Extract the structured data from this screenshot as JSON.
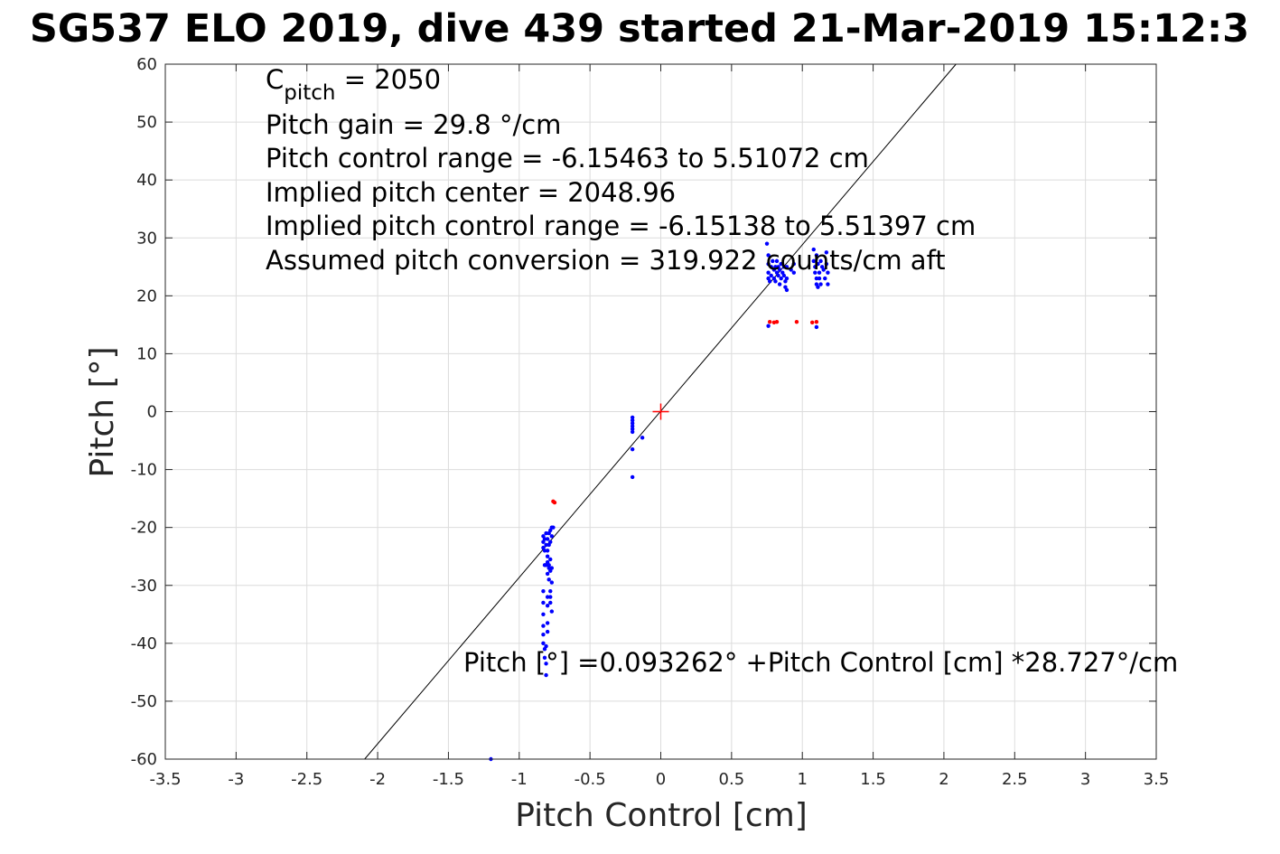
{
  "chart_data": {
    "type": "scatter",
    "title": "SG537 ELO 2019, dive 439 started 21-Mar-2019 15:12:3",
    "xlabel": "Pitch Control [cm]",
    "ylabel": "Pitch [°]",
    "xlim": [
      -3.5,
      3.5
    ],
    "ylim": [
      -60,
      60
    ],
    "xticks": [
      -3.5,
      -3,
      -2.5,
      -2,
      -1.5,
      -1,
      -0.5,
      0,
      0.5,
      1,
      1.5,
      2,
      2.5,
      3,
      3.5
    ],
    "xtick_labels": [
      "-3.5",
      "-3",
      "-2.5",
      "-2",
      "-1.5",
      "-1",
      "-0.5",
      "0",
      "0.5",
      "1",
      "1.5",
      "2",
      "2.5",
      "3",
      "3.5"
    ],
    "yticks": [
      60,
      50,
      40,
      30,
      20,
      10,
      0,
      -10,
      -20,
      -30,
      -40,
      -50,
      -60
    ],
    "ytick_labels": [
      "60",
      "50",
      "40",
      "30",
      "20",
      "10",
      "0",
      "-10",
      "-20",
      "-30",
      "-40",
      "-50",
      "-60"
    ],
    "grid": true,
    "colors": {
      "good_points": "#0000ff",
      "bad_points": "#ff0000",
      "fit_line": "#000000",
      "center_marker": "#ff0000",
      "grid": "#dcdcdc"
    },
    "fit": {
      "intercept": 0.093262,
      "slope": 28.727
    },
    "center_marker": {
      "x": 0,
      "y": 0
    },
    "annotations": {
      "c_pitch_main": "C",
      "c_pitch_sub": "pitch",
      "c_pitch_value": " = 2050",
      "lines": [
        "Pitch gain = 29.8 °/cm",
        "Pitch control range = -6.15463 to 5.51072 cm",
        "Implied pitch center = 2048.96",
        "Implied pitch control range = -6.15138 to 5.51397 cm",
        "Assumed pitch conversion = 319.922 counts/cm aft"
      ],
      "fit_equation": "Pitch [°] =0.093262° +Pitch Control [cm] *28.727°/cm"
    },
    "series": [
      {
        "color": "#0000ff",
        "points": [
          [
            -1.2,
            -60
          ],
          [
            -0.83,
            -21.5
          ],
          [
            -0.83,
            -22.5
          ],
          [
            -0.83,
            -23.5
          ],
          [
            -0.82,
            -22
          ],
          [
            -0.82,
            -24
          ],
          [
            -0.81,
            -21
          ],
          [
            -0.81,
            -23
          ],
          [
            -0.8,
            -22
          ],
          [
            -0.8,
            -24
          ],
          [
            -0.79,
            -21
          ],
          [
            -0.79,
            -23
          ],
          [
            -0.78,
            -20.5
          ],
          [
            -0.78,
            -22.5
          ],
          [
            -0.77,
            -20
          ],
          [
            -0.77,
            -21.5
          ],
          [
            -0.76,
            -20
          ],
          [
            -0.8,
            -26
          ],
          [
            -0.81,
            -26.5
          ],
          [
            -0.79,
            -27
          ],
          [
            -0.78,
            -27.5
          ],
          [
            -0.8,
            -28
          ],
          [
            -0.79,
            -26.5
          ],
          [
            -0.77,
            -27
          ],
          [
            -0.78,
            -25.5
          ],
          [
            -0.8,
            -25
          ],
          [
            -0.82,
            -26.5
          ],
          [
            -0.79,
            -29
          ],
          [
            -0.77,
            -29.5
          ],
          [
            -0.83,
            -31
          ],
          [
            -0.83,
            -33
          ],
          [
            -0.83,
            -35
          ],
          [
            -0.83,
            -37
          ],
          [
            -0.83,
            -38.5
          ],
          [
            -0.83,
            -40
          ],
          [
            -0.82,
            -41
          ],
          [
            -0.82,
            -42.5
          ],
          [
            -0.81,
            -43.5
          ],
          [
            -0.81,
            -40.5
          ],
          [
            -0.81,
            -45.5
          ],
          [
            -0.78,
            -31
          ],
          [
            -0.78,
            -32
          ],
          [
            -0.78,
            -33
          ],
          [
            -0.77,
            -34.5
          ],
          [
            -0.8,
            -32
          ],
          [
            -0.8,
            -33.5
          ],
          [
            -0.8,
            -38
          ],
          [
            -0.8,
            -36.5
          ],
          [
            -0.2,
            -1
          ],
          [
            -0.2,
            -1.5
          ],
          [
            -0.2,
            -2
          ],
          [
            -0.2,
            -2.5
          ],
          [
            -0.2,
            -3
          ],
          [
            -0.2,
            -3.5
          ],
          [
            -0.2,
            -6.5
          ],
          [
            -0.2,
            -11.3
          ],
          [
            -0.13,
            -4.5
          ],
          [
            0.75,
            29
          ],
          [
            0.76,
            27
          ],
          [
            0.76,
            25.5
          ],
          [
            0.76,
            24
          ],
          [
            0.76,
            23
          ],
          [
            0.77,
            22.5
          ],
          [
            0.78,
            25
          ],
          [
            0.78,
            23.5
          ],
          [
            0.79,
            26
          ],
          [
            0.8,
            24.5
          ],
          [
            0.8,
            23
          ],
          [
            0.81,
            25
          ],
          [
            0.81,
            22.5
          ],
          [
            0.82,
            24
          ],
          [
            0.82,
            26
          ],
          [
            0.83,
            23.5
          ],
          [
            0.83,
            25
          ],
          [
            0.84,
            22
          ],
          [
            0.84,
            24.5
          ],
          [
            0.85,
            23
          ],
          [
            0.85,
            25.5
          ],
          [
            0.86,
            24
          ],
          [
            0.87,
            23.5
          ],
          [
            0.87,
            25
          ],
          [
            0.88,
            21.5
          ],
          [
            0.88,
            22.5
          ],
          [
            0.89,
            21
          ],
          [
            0.89,
            23
          ],
          [
            0.89,
            25
          ],
          [
            0.92,
            24.5
          ],
          [
            0.94,
            25.5
          ],
          [
            0.94,
            24
          ],
          [
            0.76,
            14.8
          ],
          [
            1.1,
            14.6
          ],
          [
            1.08,
            28
          ],
          [
            1.08,
            26
          ],
          [
            1.09,
            25
          ],
          [
            1.09,
            24
          ],
          [
            1.1,
            27
          ],
          [
            1.1,
            23
          ],
          [
            1.1,
            22
          ],
          [
            1.11,
            25.5
          ],
          [
            1.11,
            21.5
          ],
          [
            1.12,
            24
          ],
          [
            1.12,
            23
          ],
          [
            1.13,
            26
          ],
          [
            1.13,
            22
          ],
          [
            1.14,
            25
          ],
          [
            1.15,
            24.5
          ],
          [
            1.16,
            23
          ],
          [
            1.17,
            27.5
          ],
          [
            1.17,
            25.5
          ],
          [
            1.18,
            24
          ],
          [
            1.18,
            22
          ]
        ]
      },
      {
        "color": "#ff0000",
        "points": [
          [
            -0.76,
            -15.5
          ],
          [
            -0.75,
            -15.7
          ],
          [
            0.77,
            15.5
          ],
          [
            0.8,
            15.4
          ],
          [
            0.82,
            15.5
          ],
          [
            0.96,
            15.5
          ],
          [
            1.07,
            15.4
          ],
          [
            1.1,
            15.5
          ]
        ]
      }
    ]
  }
}
